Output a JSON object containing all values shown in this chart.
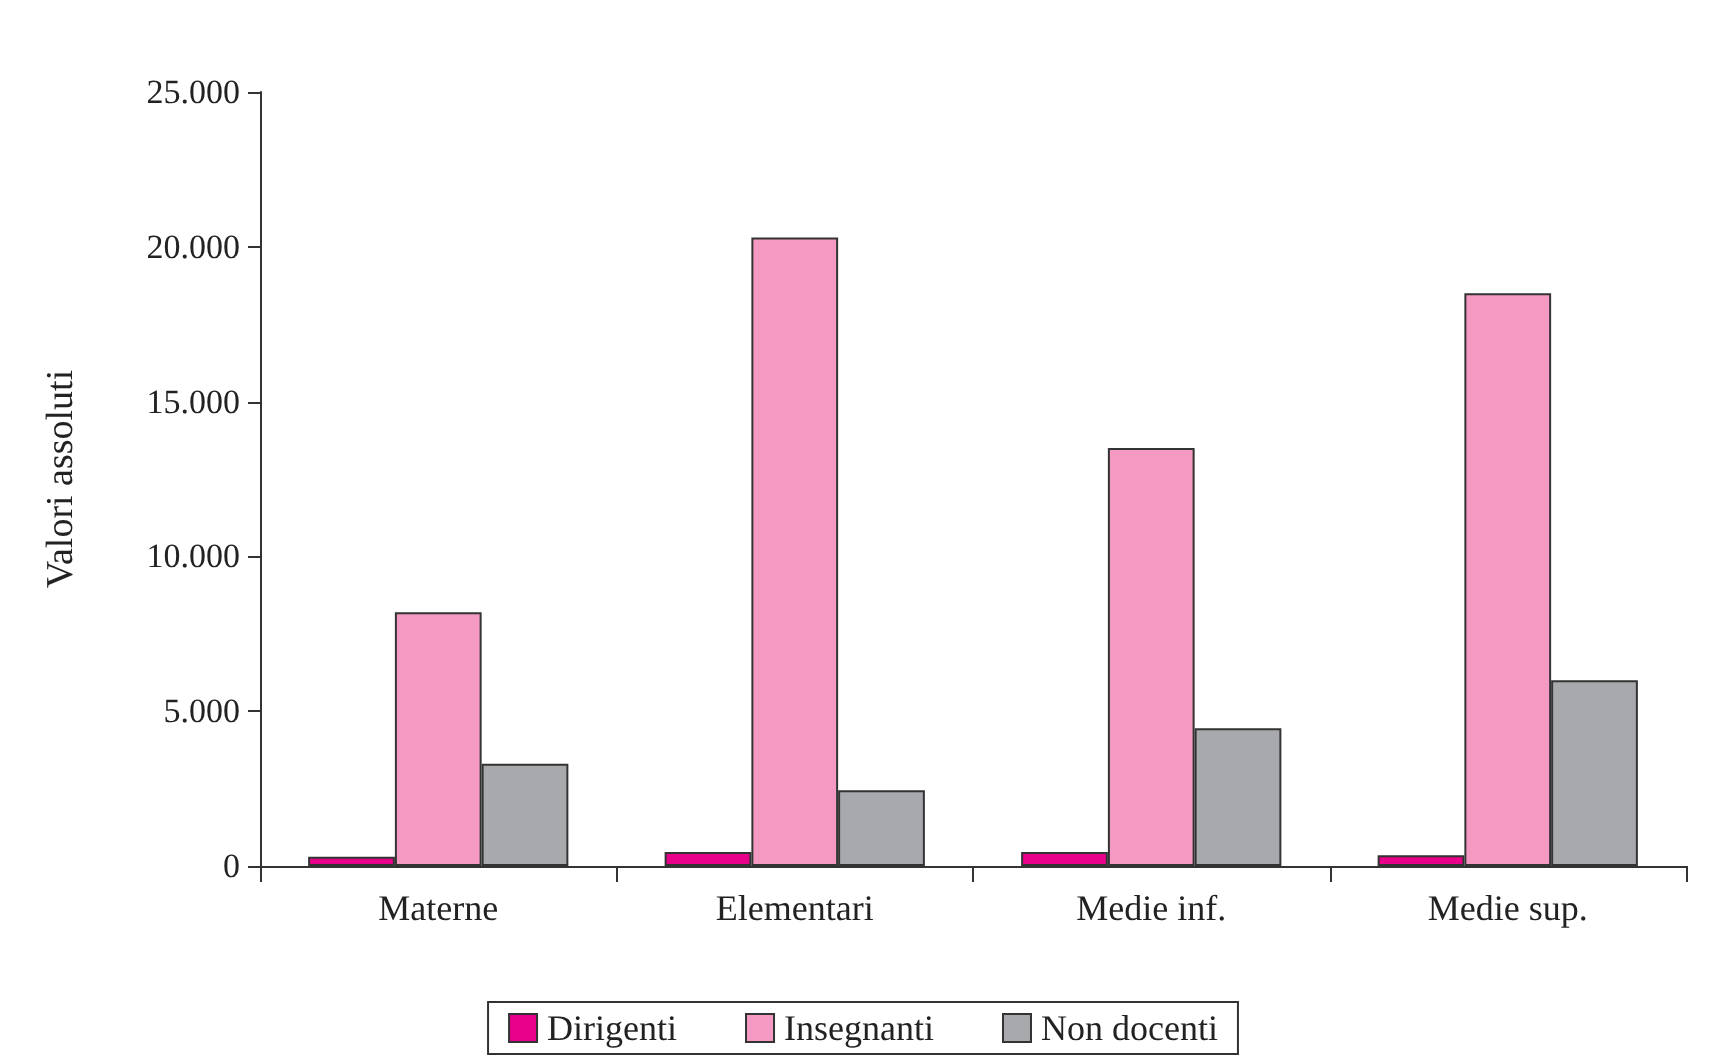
{
  "chart_data": {
    "type": "bar",
    "ylabel": "Valori assoluti",
    "categories": [
      "Materne",
      "Elementari",
      "Medie inf.",
      "Medie sup."
    ],
    "series": [
      {
        "name": "Dirigenti",
        "color": "#e8008a",
        "values": [
          300,
          450,
          450,
          350
        ]
      },
      {
        "name": "Insegnanti",
        "color": "#f49ac2",
        "values": [
          8200,
          20300,
          13500,
          18500
        ]
      },
      {
        "name": "Non docenti",
        "color": "#a8a9ad",
        "values": [
          3300,
          2450,
          4450,
          6000
        ]
      }
    ],
    "ylim": [
      0,
      25000
    ],
    "yticks": [
      {
        "value": 0,
        "label": "0"
      },
      {
        "value": 5000,
        "label": "5.000"
      },
      {
        "value": 10000,
        "label": "10.000"
      },
      {
        "value": 15000,
        "label": "15.000"
      },
      {
        "value": 20000,
        "label": "20.000"
      },
      {
        "value": 25000,
        "label": "25.000"
      }
    ],
    "grid": false,
    "legend": "bottom"
  }
}
